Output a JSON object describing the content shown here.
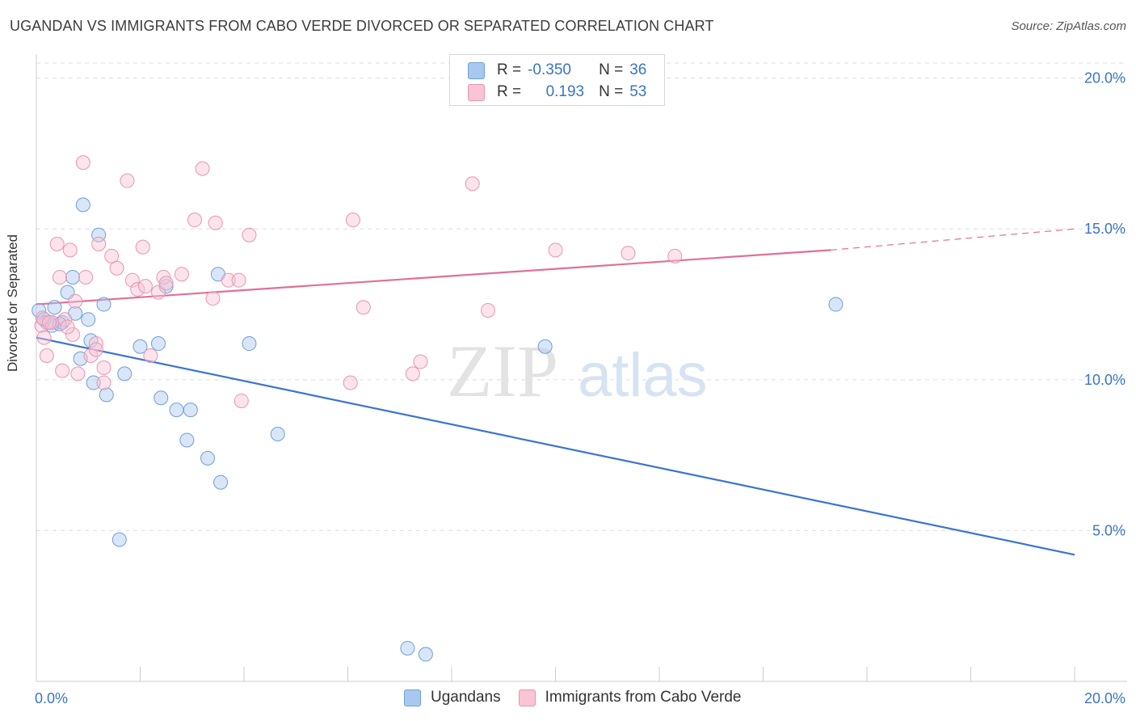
{
  "header": {
    "title": "UGANDAN VS IMMIGRANTS FROM CABO VERDE DIVORCED OR SEPARATED CORRELATION CHART",
    "source": "Source: ZipAtlas.com"
  },
  "watermark": {
    "part1": "ZIP",
    "part2": "atlas"
  },
  "legend": {
    "rows": [
      {
        "r_label": "R =",
        "r_value": "-0.350",
        "n_label": "N =",
        "n_value": "36",
        "color": "#a8c8f0",
        "border": "#6f9fd8"
      },
      {
        "r_label": "R =",
        "r_value": "0.193",
        "n_label": "N =",
        "n_value": "53",
        "color": "#f9c4d4",
        "border": "#e994b0"
      }
    ]
  },
  "bottom_legend": [
    {
      "label": "Ugandans",
      "color": "#a8c8f0",
      "border": "#6f9fd8"
    },
    {
      "label": "Immigrants from Cabo Verde",
      "color": "#f9c4d4",
      "border": "#e994b0"
    }
  ],
  "colors": {
    "blue": "#3a74d0",
    "pink": "#e07098",
    "axis_text": "#3a74c8"
  },
  "chart_data": {
    "type": "scatter",
    "title": "UGANDAN VS IMMIGRANTS FROM CABO VERDE DIVORCED OR SEPARATED CORRELATION CHART",
    "xlabel": "",
    "ylabel": "Divorced or Separated",
    "xlim": [
      0,
      20
    ],
    "ylim": [
      0,
      20.5
    ],
    "x_ticks": [
      0,
      20
    ],
    "x_tick_labels": [
      "0.0%",
      "20.0%"
    ],
    "y_ticks": [
      5,
      10,
      15,
      20
    ],
    "y_tick_labels": [
      "5.0%",
      "10.0%",
      "15.0%",
      "20.0%"
    ],
    "grid": true,
    "series": [
      {
        "name": "Ugandans",
        "color": "#a8c8f0",
        "points": [
          [
            0.05,
            12.3
          ],
          [
            0.2,
            11.9
          ],
          [
            0.3,
            11.8
          ],
          [
            0.35,
            12.4
          ],
          [
            0.5,
            11.9
          ],
          [
            0.6,
            12.9
          ],
          [
            0.7,
            13.4
          ],
          [
            0.75,
            12.2
          ],
          [
            0.9,
            15.8
          ],
          [
            1.0,
            12.0
          ],
          [
            1.05,
            11.3
          ],
          [
            1.2,
            14.8
          ],
          [
            1.3,
            12.5
          ],
          [
            0.85,
            10.7
          ],
          [
            1.1,
            9.9
          ],
          [
            1.35,
            9.5
          ],
          [
            1.7,
            10.2
          ],
          [
            2.0,
            11.1
          ],
          [
            2.35,
            11.2
          ],
          [
            2.4,
            9.4
          ],
          [
            2.5,
            13.1
          ],
          [
            2.7,
            9.0
          ],
          [
            2.97,
            9.0
          ],
          [
            2.9,
            8.0
          ],
          [
            3.3,
            7.4
          ],
          [
            3.5,
            13.5
          ],
          [
            3.55,
            6.6
          ],
          [
            4.1,
            11.2
          ],
          [
            4.65,
            8.2
          ],
          [
            1.6,
            4.7
          ],
          [
            7.15,
            1.1
          ],
          [
            7.5,
            0.9
          ],
          [
            9.8,
            11.1
          ],
          [
            15.4,
            12.5
          ],
          [
            0.15,
            12.0
          ],
          [
            0.45,
            11.85
          ]
        ]
      },
      {
        "name": "Immigrants from Cabo Verde",
        "color": "#f9c4d4",
        "points": [
          [
            0.1,
            11.8
          ],
          [
            0.15,
            11.4
          ],
          [
            0.2,
            10.8
          ],
          [
            0.3,
            11.9
          ],
          [
            0.4,
            14.5
          ],
          [
            0.45,
            13.4
          ],
          [
            0.5,
            10.3
          ],
          [
            0.55,
            12.0
          ],
          [
            0.65,
            14.3
          ],
          [
            0.7,
            11.5
          ],
          [
            0.8,
            10.2
          ],
          [
            0.9,
            17.2
          ],
          [
            0.95,
            13.4
          ],
          [
            1.05,
            10.8
          ],
          [
            1.15,
            11.2
          ],
          [
            1.2,
            14.5
          ],
          [
            1.3,
            10.4
          ],
          [
            1.45,
            14.1
          ],
          [
            1.55,
            13.7
          ],
          [
            1.75,
            16.6
          ],
          [
            1.85,
            13.3
          ],
          [
            1.95,
            13.0
          ],
          [
            2.05,
            14.4
          ],
          [
            2.1,
            13.1
          ],
          [
            2.2,
            10.8
          ],
          [
            2.35,
            12.9
          ],
          [
            2.45,
            13.4
          ],
          [
            2.5,
            13.2
          ],
          [
            2.8,
            13.5
          ],
          [
            3.05,
            15.3
          ],
          [
            3.2,
            17.0
          ],
          [
            3.45,
            15.2
          ],
          [
            3.4,
            12.7
          ],
          [
            3.7,
            13.3
          ],
          [
            3.9,
            13.3
          ],
          [
            3.95,
            9.3
          ],
          [
            4.1,
            14.8
          ],
          [
            6.05,
            9.9
          ],
          [
            6.1,
            15.3
          ],
          [
            6.3,
            12.4
          ],
          [
            7.25,
            10.2
          ],
          [
            7.4,
            10.6
          ],
          [
            8.4,
            16.5
          ],
          [
            8.7,
            12.3
          ],
          [
            10.0,
            14.3
          ],
          [
            11.4,
            14.2
          ],
          [
            12.3,
            14.1
          ],
          [
            0.12,
            12.05
          ],
          [
            1.15,
            11.0
          ],
          [
            1.3,
            9.9
          ],
          [
            0.75,
            12.6
          ],
          [
            0.25,
            11.9
          ],
          [
            0.6,
            11.75
          ]
        ]
      }
    ],
    "trend_lines": [
      {
        "name": "Ugandans",
        "x": [
          0,
          20
        ],
        "y": [
          11.4,
          4.2
        ],
        "style": "solid"
      },
      {
        "name": "Immigrants from Cabo Verde",
        "x": [
          0,
          15.3
        ],
        "y": [
          12.5,
          14.3
        ],
        "style": "solid"
      },
      {
        "name": "Immigrants from Cabo Verde",
        "x": [
          15.3,
          20
        ],
        "y": [
          14.3,
          15.0
        ],
        "style": "dashed"
      }
    ]
  }
}
